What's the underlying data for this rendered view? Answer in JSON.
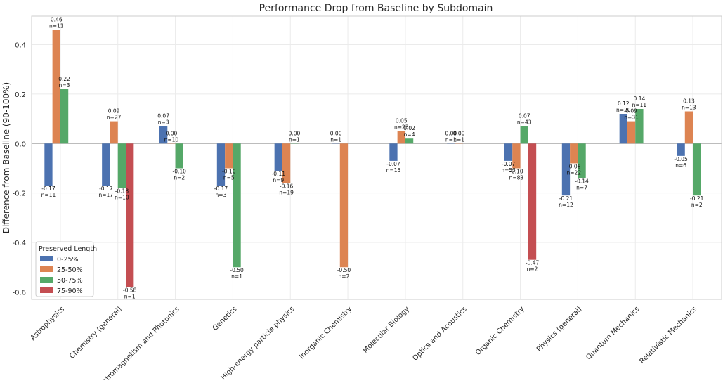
{
  "chart_data": {
    "type": "bar",
    "title": "Performance Drop from Baseline by Subdomain",
    "xlabel": "",
    "ylabel": "Difference from Baseline (90-100%)",
    "ylim": [
      -0.63,
      0.515
    ],
    "yticks": [
      -0.6,
      -0.4,
      -0.2,
      0.0,
      0.2,
      0.4
    ],
    "ytick_labels": [
      "-0.6",
      "-0.4",
      "-0.2",
      "0.0",
      "0.2",
      "0.4"
    ],
    "grid": true,
    "legend": {
      "title": "Preserved Length",
      "placement": "lower-left"
    },
    "categories": [
      "Astrophysics",
      "Chemistry (general)",
      "Electromagnetism and Photonics",
      "Genetics",
      "High-energy particle physics",
      "Inorganic Chemistry",
      "Molecular Biology",
      "Optics and Acoustics",
      "Organic Chemistry",
      "Physics (general)",
      "Quantum Mechanics",
      "Relativistic Mechanics"
    ],
    "series": [
      {
        "name": "0-25%",
        "color": "#4c72b0",
        "values": [
          -0.17,
          -0.17,
          0.07,
          -0.17,
          -0.11,
          0.0,
          -0.07,
          0.0,
          -0.07,
          -0.21,
          0.12,
          -0.05
        ],
        "labels": [
          "-0.17",
          "-0.17",
          "0.07",
          "-0.17",
          "-0.11",
          "0.00",
          "-0.07",
          "0.00",
          "-0.07",
          "-0.21",
          "0.12",
          "-0.05"
        ],
        "n": [
          "n=11",
          "n=17",
          "n=3",
          "n=3",
          "n=9",
          "n=1",
          "n=15",
          "n=1",
          "n=53",
          "n=12",
          "n=20",
          "n=6"
        ]
      },
      {
        "name": "25-50%",
        "color": "#dd8452",
        "values": [
          0.46,
          0.09,
          0.0,
          -0.1,
          -0.16,
          -0.5,
          0.05,
          0.0,
          -0.1,
          -0.08,
          0.09,
          0.13
        ],
        "labels": [
          "0.46",
          "0.09",
          "0.00",
          "-0.10",
          "-0.16",
          "-0.50",
          "0.05",
          "0.00",
          "-0.10",
          "-0.08",
          "0.09",
          "0.13"
        ],
        "n": [
          "n=11",
          "n=27",
          "n=10",
          "n=5",
          "n=19",
          "n=2",
          "n=23",
          "n=1",
          "n=83",
          "n=22",
          "n=31",
          "n=13"
        ]
      },
      {
        "name": "50-75%",
        "color": "#55a868",
        "values": [
          0.22,
          -0.18,
          -0.1,
          -0.5,
          0.0,
          null,
          0.02,
          null,
          0.07,
          -0.14,
          0.14,
          -0.21
        ],
        "labels": [
          "0.22",
          "-0.18",
          "-0.10",
          "-0.50",
          "0.00",
          "",
          "0.02",
          "",
          "0.07",
          "-0.14",
          "0.14",
          "-0.21"
        ],
        "n": [
          "n=3",
          "n=10",
          "n=2",
          "n=1",
          "n=1",
          "",
          "n=4",
          "",
          "n=43",
          "n=7",
          "n=11",
          "n=2"
        ]
      },
      {
        "name": "75-90%",
        "color": "#c44e52",
        "values": [
          null,
          -0.58,
          null,
          null,
          null,
          null,
          null,
          null,
          -0.47,
          null,
          null,
          null
        ],
        "labels": [
          "",
          "-0.58",
          "",
          "",
          "",
          "",
          "",
          "",
          "-0.47",
          "",
          "",
          ""
        ],
        "n": [
          "",
          "n=1",
          "",
          "",
          "",
          "",
          "",
          "",
          "n=2",
          "",
          "",
          ""
        ]
      }
    ]
  }
}
